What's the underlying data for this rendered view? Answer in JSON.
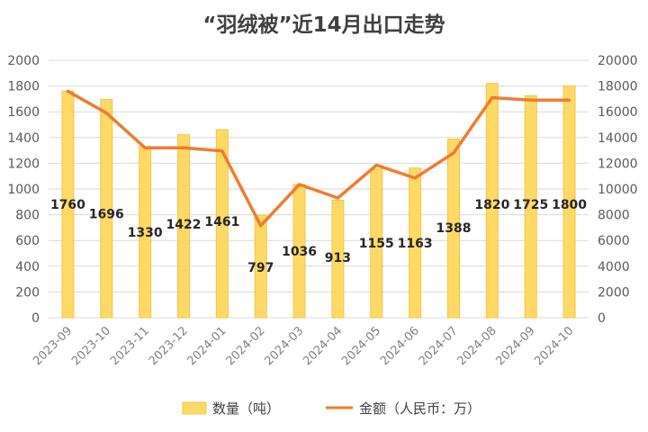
{
  "chart_data": {
    "type": "bar",
    "title": "“羽绒被”近14月出口走势",
    "categories": [
      "2023-09",
      "2023-10",
      "2023-11",
      "2023-12",
      "2024-01",
      "2024-02",
      "2024-03",
      "2024-04",
      "2024-05",
      "2024-06",
      "2024-07",
      "2024-08",
      "2024-09",
      "2024-10"
    ],
    "series": [
      {
        "name": "数量（吨）",
        "type": "bar",
        "axis": "left",
        "color": "#FFD966",
        "values": [
          1760,
          1696,
          1330,
          1422,
          1461,
          797,
          1036,
          913,
          1155,
          1163,
          1388,
          1820,
          1725,
          1800
        ]
      },
      {
        "name": "金额（人民币：万）",
        "type": "line",
        "axis": "right",
        "color": "#ED7D31",
        "values": [
          17600,
          15900,
          13200,
          13200,
          12950,
          7150,
          10350,
          9300,
          11850,
          10850,
          12800,
          17100,
          16900,
          16900
        ]
      }
    ],
    "ylim_left": [
      0,
      2000
    ],
    "ylim_right": [
      0,
      20000
    ],
    "yticks_left": [
      "0",
      "200",
      "400",
      "600",
      "800",
      "1000",
      "1200",
      "1400",
      "1600",
      "1800",
      "2000"
    ],
    "yticks_right": [
      "0",
      "2000",
      "4000",
      "6000",
      "8000",
      "10000",
      "12000",
      "14000",
      "16000",
      "18000",
      "20000"
    ],
    "data_labels": [
      "1760",
      "1696",
      "1330",
      "1422",
      "1461",
      "797",
      "1036",
      "913",
      "1155",
      "1163",
      "1388",
      "1820",
      "1725",
      "1800"
    ],
    "grid": true,
    "legend_position": "bottom"
  }
}
